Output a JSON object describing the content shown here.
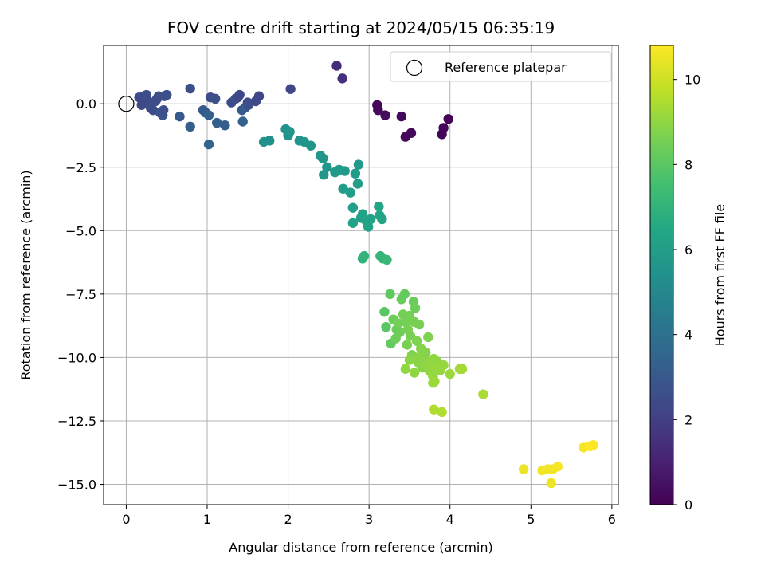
{
  "chart_data": {
    "type": "scatter",
    "title": "FOV centre drift starting at 2024/05/15 06:35:19",
    "xlabel": "Angular distance from reference (arcmin)",
    "ylabel": "Rotation from reference (arcmin)",
    "xlim": [
      -0.28,
      6.08
    ],
    "ylim": [
      -15.8,
      2.3
    ],
    "xticks": [
      0,
      1,
      2,
      3,
      4,
      5,
      6
    ],
    "xtick_labels": [
      "0",
      "1",
      "2",
      "3",
      "4",
      "5",
      "6"
    ],
    "yticks": [
      0.0,
      -2.5,
      -5.0,
      -7.5,
      -10.0,
      -12.5,
      -15.0
    ],
    "ytick_labels": [
      "0.0",
      "−2.5",
      "−5.0",
      "−7.5",
      "−10.0",
      "−12.5",
      "−15.0"
    ],
    "grid": true,
    "legend": {
      "placement": "top-right",
      "entries": [
        "Reference platepar"
      ]
    },
    "reference_point": {
      "x": 0.0,
      "y": 0.0,
      "label": "Reference platepar"
    },
    "colorbar": {
      "label": "Hours from first FF file",
      "range": [
        0,
        10.8
      ],
      "ticks": [
        0,
        2,
        4,
        6,
        8,
        10
      ],
      "tick_labels": [
        "0",
        "2",
        "4",
        "6",
        "8",
        "10"
      ],
      "colormap": "viridis"
    },
    "series": [
      {
        "points": [
          [
            3.1,
            -0.05,
            0.15
          ],
          [
            3.11,
            -0.25,
            0.2
          ],
          [
            3.2,
            -0.45,
            0.3
          ],
          [
            3.4,
            -0.5,
            0.25
          ],
          [
            3.45,
            -1.3,
            0.2
          ],
          [
            3.52,
            -1.15,
            0.2
          ],
          [
            3.9,
            -1.2,
            0.1
          ],
          [
            3.92,
            -0.95,
            0.15
          ],
          [
            3.98,
            -0.6,
            0.05
          ],
          [
            2.6,
            1.5,
            1.4
          ],
          [
            2.67,
            1.0,
            1.5
          ],
          [
            0.16,
            0.25,
            2.5
          ],
          [
            0.19,
            -0.05,
            2.4
          ],
          [
            0.22,
            0.3,
            2.5
          ],
          [
            0.25,
            0.35,
            2.6
          ],
          [
            0.27,
            0.1,
            2.5
          ],
          [
            0.3,
            -0.15,
            2.6
          ],
          [
            0.33,
            -0.25,
            2.5
          ],
          [
            0.36,
            0.1,
            2.6
          ],
          [
            0.38,
            0.2,
            2.5
          ],
          [
            0.4,
            0.3,
            2.6
          ],
          [
            0.42,
            -0.35,
            2.7
          ],
          [
            0.45,
            -0.45,
            2.7
          ],
          [
            0.46,
            -0.25,
            2.6
          ],
          [
            0.47,
            0.3,
            2.6
          ],
          [
            0.5,
            0.35,
            2.6
          ],
          [
            0.66,
            -0.5,
            3.0
          ],
          [
            0.79,
            0.6,
            2.6
          ],
          [
            0.79,
            -0.9,
            3.2
          ],
          [
            0.95,
            -0.25,
            3.1
          ],
          [
            0.98,
            -0.35,
            3.0
          ],
          [
            1.02,
            -0.45,
            3.3
          ],
          [
            1.02,
            -1.6,
            3.5
          ],
          [
            1.04,
            0.25,
            2.5
          ],
          [
            1.1,
            0.2,
            2.6
          ],
          [
            1.12,
            -0.75,
            3.3
          ],
          [
            1.22,
            -0.85,
            3.2
          ],
          [
            1.3,
            0.05,
            2.5
          ],
          [
            1.35,
            0.2,
            2.6
          ],
          [
            1.38,
            0.25,
            2.4
          ],
          [
            1.4,
            0.35,
            2.3
          ],
          [
            1.43,
            -0.25,
            3.0
          ],
          [
            1.44,
            -0.7,
            3.4
          ],
          [
            1.47,
            -0.15,
            3.1
          ],
          [
            1.5,
            0.05,
            2.5
          ],
          [
            1.51,
            -0.05,
            2.6
          ],
          [
            1.6,
            0.1,
            2.4
          ],
          [
            1.64,
            0.3,
            2.3
          ],
          [
            2.03,
            0.58,
            2.3
          ],
          [
            1.7,
            -1.5,
            5.4
          ],
          [
            1.77,
            -1.45,
            5.4
          ],
          [
            1.97,
            -1.0,
            5.5
          ],
          [
            2.0,
            -1.25,
            5.5
          ],
          [
            2.02,
            -1.1,
            5.6
          ],
          [
            2.14,
            -1.45,
            5.6
          ],
          [
            2.2,
            -1.5,
            5.6
          ],
          [
            2.28,
            -1.65,
            5.6
          ],
          [
            2.4,
            -2.05,
            5.7
          ],
          [
            2.43,
            -2.15,
            5.7
          ],
          [
            2.44,
            -2.8,
            5.7
          ],
          [
            2.48,
            -2.5,
            5.7
          ],
          [
            2.58,
            -2.7,
            5.8
          ],
          [
            2.63,
            -2.6,
            5.8
          ],
          [
            2.68,
            -3.35,
            6.0
          ],
          [
            2.7,
            -2.65,
            5.8
          ],
          [
            2.77,
            -3.5,
            6.0
          ],
          [
            2.8,
            -4.1,
            6.1
          ],
          [
            2.8,
            -4.7,
            6.2
          ],
          [
            2.83,
            -2.75,
            5.9
          ],
          [
            2.86,
            -3.15,
            6.0
          ],
          [
            2.87,
            -2.4,
            5.8
          ],
          [
            2.9,
            -4.5,
            6.1
          ],
          [
            2.92,
            -4.35,
            6.2
          ],
          [
            2.97,
            -4.65,
            6.2
          ],
          [
            2.99,
            -4.85,
            6.2
          ],
          [
            3.02,
            -4.55,
            6.2
          ],
          [
            3.12,
            -4.05,
            6.3
          ],
          [
            3.13,
            -4.4,
            6.3
          ],
          [
            3.16,
            -4.55,
            6.3
          ],
          [
            2.92,
            -6.1,
            7.0
          ],
          [
            2.94,
            -6.0,
            7.0
          ],
          [
            3.14,
            -6.0,
            7.1
          ],
          [
            3.17,
            -6.1,
            7.1
          ],
          [
            3.22,
            -6.15,
            7.2
          ],
          [
            3.19,
            -8.2,
            8.0
          ],
          [
            3.21,
            -8.8,
            8.0
          ],
          [
            3.26,
            -7.5,
            8.1
          ],
          [
            3.27,
            -9.45,
            8.2
          ],
          [
            3.3,
            -8.5,
            8.4
          ],
          [
            3.33,
            -9.25,
            8.4
          ],
          [
            3.34,
            -8.9,
            8.3
          ],
          [
            3.36,
            -8.65,
            8.5
          ],
          [
            3.38,
            -9.0,
            8.4
          ],
          [
            3.4,
            -7.7,
            8.3
          ],
          [
            3.42,
            -8.3,
            8.5
          ],
          [
            3.44,
            -7.5,
            8.2
          ],
          [
            3.45,
            -8.6,
            8.5
          ],
          [
            3.47,
            -9.5,
            8.6
          ],
          [
            3.48,
            -8.9,
            8.6
          ],
          [
            3.5,
            -8.35,
            8.5
          ],
          [
            3.51,
            -9.15,
            8.6
          ],
          [
            3.53,
            -9.9,
            8.7
          ],
          [
            3.55,
            -7.8,
            8.3
          ],
          [
            3.56,
            -8.6,
            8.6
          ],
          [
            3.57,
            -8.05,
            8.4
          ],
          [
            3.59,
            -9.35,
            8.7
          ],
          [
            3.61,
            -10.2,
            8.9
          ],
          [
            3.62,
            -8.7,
            8.6
          ],
          [
            3.64,
            -9.65,
            8.8
          ],
          [
            3.66,
            -10.4,
            8.9
          ],
          [
            3.68,
            -10.0,
            8.9
          ],
          [
            3.7,
            -9.8,
            8.8
          ],
          [
            3.72,
            -10.3,
            9.0
          ],
          [
            3.73,
            -9.2,
            8.7
          ],
          [
            3.75,
            -10.55,
            9.0
          ],
          [
            3.77,
            -10.2,
            9.0
          ],
          [
            3.79,
            -10.75,
            9.1
          ],
          [
            3.8,
            -10.05,
            9.0
          ],
          [
            3.82,
            -10.35,
            9.1
          ],
          [
            3.84,
            -10.15,
            9.0
          ],
          [
            3.86,
            -10.4,
            9.1
          ],
          [
            3.88,
            -10.5,
            9.1
          ],
          [
            3.92,
            -10.3,
            9.1
          ],
          [
            3.45,
            -10.45,
            9.0
          ],
          [
            3.5,
            -10.1,
            8.9
          ],
          [
            3.56,
            -10.6,
            9.0
          ],
          [
            3.6,
            -10.0,
            8.9
          ],
          [
            3.79,
            -11.0,
            9.2
          ],
          [
            3.81,
            -10.95,
            9.2
          ],
          [
            4.0,
            -10.65,
            9.2
          ],
          [
            4.12,
            -10.45,
            9.3
          ],
          [
            4.15,
            -10.45,
            9.3
          ],
          [
            4.41,
            -11.45,
            9.4
          ],
          [
            3.8,
            -12.05,
            9.5
          ],
          [
            3.9,
            -12.15,
            9.5
          ],
          [
            4.91,
            -14.4,
            10.5
          ],
          [
            5.14,
            -14.45,
            10.6
          ],
          [
            5.21,
            -14.4,
            10.6
          ],
          [
            5.25,
            -14.95,
            10.5
          ],
          [
            5.27,
            -14.4,
            10.6
          ],
          [
            5.33,
            -14.3,
            10.7
          ],
          [
            5.65,
            -13.55,
            10.7
          ],
          [
            5.73,
            -13.5,
            10.8
          ],
          [
            5.77,
            -13.45,
            10.8
          ]
        ]
      }
    ]
  }
}
